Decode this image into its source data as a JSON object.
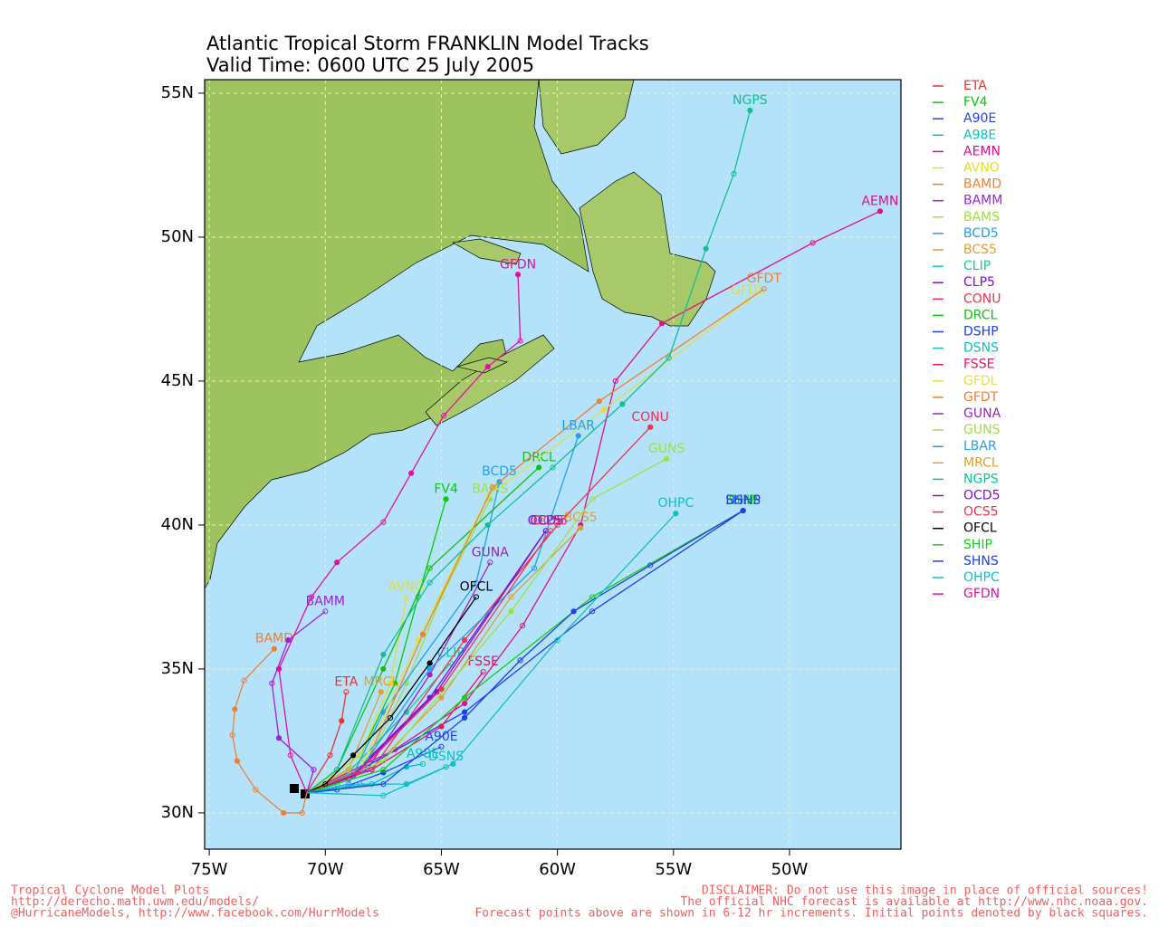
{
  "chart_data": {
    "type": "track-map",
    "title": "Atlantic Tropical Storm FRANKLIN Model Tracks",
    "subtitle": "Valid Time: 0600 UTC 25 July 2005",
    "xlim": [
      -75.2,
      -45.2
    ],
    "ylim": [
      28.74,
      55.47
    ],
    "xticks": [
      {
        "value": -75,
        "label": "75W"
      },
      {
        "value": -70,
        "label": "70W"
      },
      {
        "value": -65,
        "label": "65W"
      },
      {
        "value": -60,
        "label": "60W"
      },
      {
        "value": -55,
        "label": "55W"
      },
      {
        "value": -50,
        "label": "50W"
      }
    ],
    "yticks": [
      {
        "value": 30,
        "label": "30N"
      },
      {
        "value": 35,
        "label": "35N"
      },
      {
        "value": 40,
        "label": "40N"
      },
      {
        "value": 45,
        "label": "45N"
      },
      {
        "value": 50,
        "label": "50N"
      },
      {
        "value": 55,
        "label": "55N"
      }
    ],
    "grid": true,
    "legend": "right",
    "series": [
      {
        "name": "ETA",
        "color": "#f03030",
        "x": [
          -70.8,
          -69.8,
          -69.3,
          -69.1
        ],
        "values": [
          30.7,
          32.0,
          33.2,
          34.2
        ]
      },
      {
        "name": "FV4",
        "color": "#00d000",
        "x": [
          -70.8,
          -68.5,
          -67.0,
          -66.0,
          -64.8
        ],
        "values": [
          30.7,
          32.0,
          34.5,
          37.5,
          40.9
        ]
      },
      {
        "name": "A90E",
        "color": "#2040ff",
        "x": [
          -70.8,
          -69.5,
          -67.5,
          -65.0
        ],
        "values": [
          30.7,
          30.8,
          31.4,
          32.3
        ]
      },
      {
        "name": "A98E",
        "color": "#00c0c0",
        "x": [
          -70.8,
          -68.0,
          -66.5,
          -65.8
        ],
        "values": [
          30.7,
          31.0,
          31.6,
          31.7
        ]
      },
      {
        "name": "AEMN",
        "color": "#e0108a",
        "x": [
          -70.8,
          -67.0,
          -64.0,
          -61.5,
          -59.0,
          -57.5,
          -55.5,
          -49.0,
          -46.1
        ],
        "values": [
          30.7,
          32.2,
          33.8,
          36.5,
          40.0,
          45.0,
          47.0,
          49.8,
          50.9
        ]
      },
      {
        "name": "AVNO",
        "color": "#e0e030",
        "x": [
          -70.8,
          -68.5,
          -67.2,
          -66.5
        ],
        "values": [
          30.7,
          32.0,
          34.5,
          37.5
        ]
      },
      {
        "name": "BAMD",
        "color": "#f08030",
        "x": [
          -70.8,
          -71.0,
          -71.8,
          -73.0,
          -73.8,
          -74.0,
          -73.9,
          -73.5,
          -72.2
        ],
        "values": [
          30.7,
          30.0,
          30.0,
          30.8,
          31.8,
          32.7,
          33.6,
          34.6,
          35.7
        ]
      },
      {
        "name": "BAMM",
        "color": "#a020e0",
        "x": [
          -70.8,
          -70.5,
          -72.0,
          -72.3,
          -71.6,
          -70.0
        ],
        "values": [
          30.7,
          31.5,
          32.6,
          34.5,
          36.0,
          37.0
        ]
      },
      {
        "name": "BAMS",
        "color": "#a0e040",
        "x": [
          -70.8,
          -68.0,
          -66.5,
          -65.0,
          -62.9
        ],
        "values": [
          30.7,
          32.0,
          34.5,
          37.5,
          40.9
        ]
      },
      {
        "name": "BCD5",
        "color": "#20a0f0",
        "x": [
          -70.8,
          -69.0,
          -67.5,
          -63.5,
          -62.5
        ],
        "values": [
          30.7,
          31.0,
          33.5,
          38.0,
          41.5
        ]
      },
      {
        "name": "BCS5",
        "color": "#e0a030",
        "x": [
          -70.8,
          -68.0,
          -65.0,
          -62.0,
          -59.0
        ],
        "values": [
          30.7,
          31.5,
          34.0,
          37.5,
          39.9
        ]
      },
      {
        "name": "CLIP",
        "color": "#10d090",
        "x": [
          -70.8,
          -69.5,
          -66.5,
          -64.6
        ],
        "values": [
          30.7,
          31.0,
          33.5,
          35.2
        ]
      },
      {
        "name": "CLP5",
        "color": "#8010d0",
        "x": [
          -70.8,
          -69.0,
          -65.5,
          -60.5
        ],
        "values": [
          30.7,
          31.2,
          34.0,
          39.8
        ]
      },
      {
        "name": "CONU",
        "color": "#f03050",
        "x": [
          -70.8,
          -68.0,
          -64.0,
          -60.0,
          -56.0
        ],
        "values": [
          30.7,
          31.5,
          36.0,
          40.0,
          43.4
        ]
      },
      {
        "name": "DRCL",
        "color": "#10c010",
        "x": [
          -70.8,
          -69.5,
          -67.5,
          -65.5,
          -60.8
        ],
        "values": [
          30.7,
          31.5,
          35.0,
          38.5,
          42.0
        ]
      },
      {
        "name": "DSHP",
        "color": "#2040f0",
        "x": [
          -70.8,
          -68.5,
          -64.0,
          -58.5,
          -52.0
        ],
        "values": [
          30.7,
          31.5,
          33.5,
          37.0,
          40.5
        ]
      },
      {
        "name": "DSNS",
        "color": "#10c0c0",
        "x": [
          -70.8,
          -68.5,
          -66.5,
          -64.8
        ],
        "values": [
          30.7,
          31.0,
          31.0,
          31.6
        ]
      },
      {
        "name": "FSSE",
        "color": "#f01060",
        "x": [
          -70.8,
          -68.0,
          -65.0,
          -63.2
        ],
        "values": [
          30.7,
          31.5,
          33.0,
          34.9
        ]
      },
      {
        "name": "GFDL",
        "color": "#e0e040",
        "x": [
          -70.8,
          -68.5,
          -66.0,
          -63.0,
          -58.0,
          -51.8
        ],
        "values": [
          30.7,
          31.5,
          36.0,
          41.0,
          44.0,
          47.8
        ]
      },
      {
        "name": "GFDT",
        "color": "#f08030",
        "x": [
          -70.8,
          -68.3,
          -65.8,
          -62.8,
          -58.2,
          -51.1
        ],
        "values": [
          30.7,
          31.6,
          36.2,
          41.3,
          44.3,
          48.2
        ]
      },
      {
        "name": "GUNA",
        "color": "#a020c0",
        "x": [
          -70.8,
          -68.2,
          -65.5,
          -62.9
        ],
        "values": [
          30.7,
          31.5,
          34.8,
          38.7
        ]
      },
      {
        "name": "GUNS",
        "color": "#a0e040",
        "x": [
          -70.8,
          -67.5,
          -62.0,
          -58.5,
          -55.3
        ],
        "values": [
          30.7,
          31.8,
          37.0,
          40.9,
          42.3
        ]
      },
      {
        "name": "LBAR",
        "color": "#20a0f0",
        "x": [
          -70.8,
          -68.5,
          -65.5,
          -61.0,
          -59.1
        ],
        "values": [
          30.7,
          31.5,
          35.0,
          38.5,
          43.1
        ]
      },
      {
        "name": "MRCL",
        "color": "#e0a030",
        "x": [
          -70.8,
          -69.0,
          -67.6
        ],
        "values": [
          30.7,
          31.5,
          34.2
        ]
      },
      {
        "name": "NGPS",
        "color": "#10c090",
        "x": [
          -70.8,
          -69.5,
          -67.5,
          -65.5,
          -63.0,
          -60.2,
          -57.2,
          -55.2,
          -53.6,
          -52.4,
          -51.7
        ],
        "values": [
          30.7,
          31.5,
          35.5,
          38.0,
          40.0,
          42.0,
          44.2,
          45.8,
          49.6,
          52.2,
          54.4
        ]
      },
      {
        "name": "OCD5",
        "color": "#8010d0",
        "x": [
          -70.8,
          -68.8,
          -65.2,
          -60.5
        ],
        "values": [
          30.7,
          31.3,
          34.2,
          39.8
        ]
      },
      {
        "name": "OCS5",
        "color": "#f03050",
        "x": [
          -70.8,
          -68.6,
          -65.0,
          -60.3
        ],
        "values": [
          30.7,
          31.4,
          34.3,
          39.8
        ]
      },
      {
        "name": "OFCL",
        "color": "#000000",
        "x": [
          -70.8,
          -70.0,
          -68.8,
          -67.2,
          -65.5,
          -63.5
        ],
        "values": [
          30.7,
          31.0,
          32.0,
          33.3,
          35.2,
          37.5
        ]
      },
      {
        "name": "SHIP",
        "color": "#10d010",
        "x": [
          -70.8,
          -67.5,
          -64.0,
          -58.5,
          -52.0
        ],
        "values": [
          30.7,
          31.5,
          34.0,
          37.5,
          40.5
        ]
      },
      {
        "name": "SHNS",
        "color": "#2040f0",
        "x": [
          -70.8,
          -67.5,
          -64.0,
          -61.6,
          -59.3,
          -56.0,
          -52.0
        ],
        "values": [
          30.7,
          31.0,
          33.3,
          35.3,
          37.0,
          38.6,
          40.5
        ]
      },
      {
        "name": "OHPC",
        "color": "#10c0c0",
        "x": [
          -70.8,
          -67.5,
          -64.5,
          -60.0,
          -54.9
        ],
        "values": [
          30.7,
          30.6,
          31.7,
          36.0,
          40.4
        ]
      },
      {
        "name": "GFDN",
        "color": "#e010a0",
        "x": [
          -70.8,
          -71.5,
          -72.0,
          -70.6,
          -69.5,
          -67.5,
          -66.3,
          -64.9,
          -63.0,
          -61.6,
          -61.7
        ],
        "values": [
          30.7,
          32.0,
          35.0,
          37.5,
          38.7,
          40.1,
          41.8,
          43.8,
          45.5,
          46.4,
          48.7
        ]
      }
    ],
    "footer_left": [
      "Tropical Cyclone Model Plots",
      "http://derecho.math.uwm.edu/models/",
      "@HurricaneModels, http://www.facebook.com/HurrModels"
    ],
    "footer_right": [
      "DISCLAIMER: Do not use this image in place of official sources!",
      "The official NHC forecast is available at http://www.nhc.noaa.gov.",
      "Forecast points above are shown in 6-12 hr increments. Initial points denoted by black squares."
    ]
  }
}
